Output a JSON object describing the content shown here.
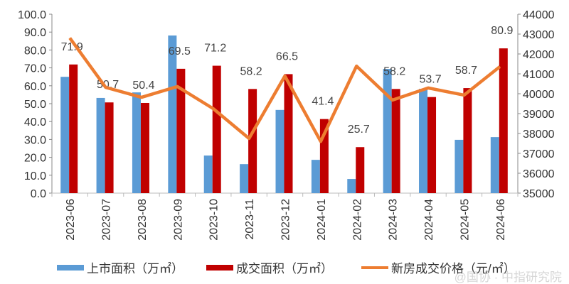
{
  "chart_data": {
    "type": "bar",
    "categories": [
      "2023-06",
      "2023-07",
      "2023-08",
      "2023-09",
      "2023-10",
      "2023-11",
      "2023-12",
      "2024-01",
      "2024-02",
      "2024-03",
      "2024-04",
      "2024-05",
      "2024-06"
    ],
    "series": [
      {
        "name": "上市面积（万㎡）",
        "type": "bar",
        "axis": "left",
        "color": "#5b9bd5",
        "values": [
          65.0,
          53.2,
          56.3,
          88.1,
          21.0,
          16.2,
          46.5,
          18.6,
          7.9,
          69.4,
          58.3,
          29.8,
          31.3
        ]
      },
      {
        "name": "成交面积（万㎡）",
        "type": "bar",
        "axis": "left",
        "color": "#c00000",
        "values": [
          71.9,
          50.7,
          50.4,
          69.5,
          71.2,
          58.2,
          66.5,
          41.4,
          25.7,
          58.2,
          53.7,
          58.7,
          80.9
        ],
        "data_labels": [
          "71.9",
          "50.7",
          "50.4",
          "69.5",
          "71.2",
          "58.2",
          "66.5",
          "41.4",
          "25.7",
          "58.2",
          "53.7",
          "58.7",
          "80.9"
        ]
      },
      {
        "name": "新房成交价格（元/㎡）",
        "type": "line",
        "axis": "right",
        "color": "#ed7d31",
        "values": [
          42800,
          40320,
          39820,
          40360,
          39250,
          37750,
          40890,
          37600,
          41390,
          39680,
          40290,
          39930,
          41360
        ]
      }
    ],
    "ylim": [
      0,
      100
    ],
    "y_ticks": [
      "0.0",
      "10.0",
      "20.0",
      "30.0",
      "40.0",
      "50.0",
      "60.0",
      "70.0",
      "80.0",
      "90.0",
      "100.0"
    ],
    "y2lim": [
      35000,
      44000
    ],
    "y2_ticks": [
      "35000",
      "36000",
      "37000",
      "38000",
      "39000",
      "40000",
      "41000",
      "42000",
      "43000",
      "44000"
    ],
    "grid": false,
    "legend": "bottom"
  },
  "watermark": "@国协 · 中指研究院"
}
